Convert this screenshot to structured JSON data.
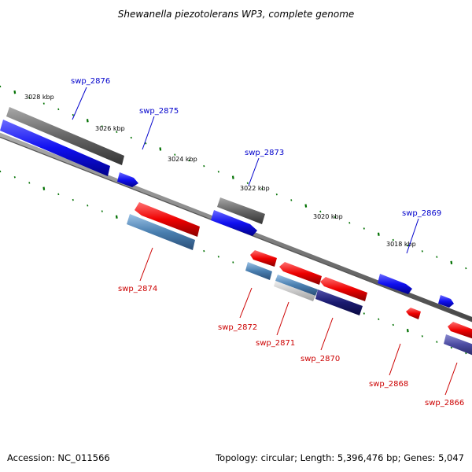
{
  "title": "Shewanella piezotolerans WP3, complete genome",
  "footer": {
    "accession": "Accession: NC_011566",
    "summary": "Topology: circular; Length: 5,396,476 bp; Genes: 5,047"
  },
  "kbp_labels": [
    "3028 kbp",
    "3026 kbp",
    "3024 kbp",
    "3022 kbp",
    "3020 kbp",
    "3018 kbp"
  ],
  "genes": [
    {
      "name": "swp_2876",
      "strand": "forward"
    },
    {
      "name": "swp_2875",
      "strand": "forward"
    },
    {
      "name": "swp_2873",
      "strand": "forward"
    },
    {
      "name": "swp_2869",
      "strand": "forward"
    },
    {
      "name": "swp_2874",
      "strand": "reverse"
    },
    {
      "name": "swp_2872",
      "strand": "reverse"
    },
    {
      "name": "swp_2871",
      "strand": "reverse"
    },
    {
      "name": "swp_2870",
      "strand": "reverse"
    },
    {
      "name": "swp_2868",
      "strand": "reverse"
    },
    {
      "name": "swp_2866",
      "strand": "reverse"
    }
  ],
  "colors": {
    "forward_label": "#0000cc",
    "reverse_label": "#cc0000",
    "forward_gene": "#1010f0",
    "reverse_gene": "#ee0000",
    "rna_gene": "#666666",
    "steelblue_gene": "#4a7fb0",
    "navy_gene": "#1a1a70",
    "purple_gene": "#4a4aa0",
    "backbone": "#777777",
    "tick": "#007000"
  }
}
